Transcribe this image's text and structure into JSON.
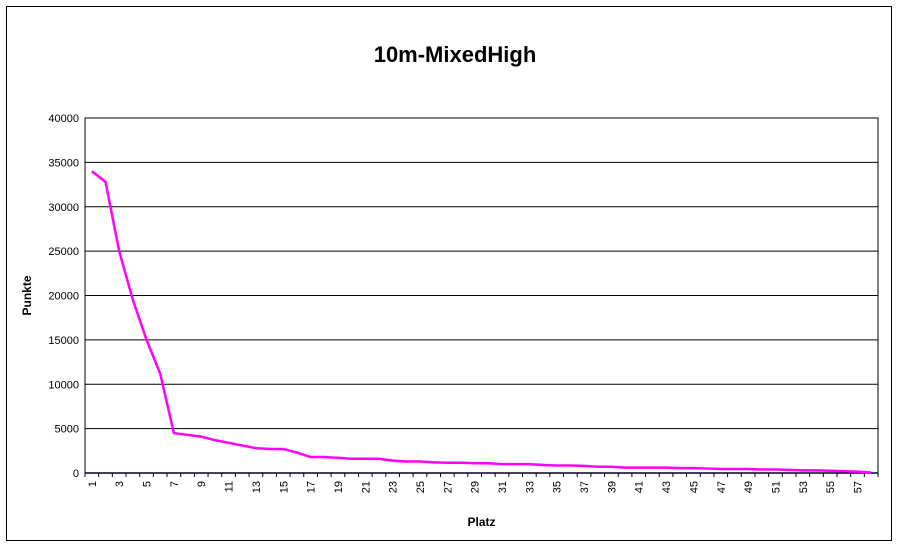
{
  "chart_data": {
    "type": "line",
    "title": "10m-MixedHigh",
    "xlabel": "Platz",
    "ylabel": "Punkte",
    "ylim": [
      0,
      40000
    ],
    "yticks": [
      0,
      5000,
      10000,
      15000,
      20000,
      25000,
      30000,
      35000,
      40000
    ],
    "xlim": [
      1,
      58
    ],
    "xticks": [
      1,
      3,
      5,
      7,
      9,
      11,
      13,
      15,
      17,
      19,
      21,
      23,
      25,
      27,
      29,
      31,
      33,
      35,
      37,
      39,
      41,
      43,
      45,
      47,
      49,
      51,
      53,
      55,
      57
    ],
    "grid": true,
    "legend": "none",
    "series": [
      {
        "color": "#ff00ff",
        "x": [
          1,
          2,
          3,
          4,
          5,
          6,
          7,
          8,
          9,
          10,
          11,
          12,
          13,
          14,
          15,
          16,
          17,
          18,
          19,
          20,
          21,
          22,
          23,
          24,
          25,
          26,
          27,
          28,
          29,
          30,
          31,
          32,
          33,
          34,
          35,
          36,
          37,
          38,
          39,
          40,
          41,
          42,
          43,
          44,
          45,
          46,
          47,
          48,
          49,
          50,
          51,
          52,
          53,
          54,
          55,
          56,
          57,
          58
        ],
        "values": [
          34000,
          32800,
          25000,
          19500,
          15000,
          11200,
          4500,
          4300,
          4100,
          3700,
          3400,
          3100,
          2800,
          2700,
          2700,
          2300,
          1800,
          1800,
          1700,
          1600,
          1600,
          1600,
          1400,
          1300,
          1300,
          1200,
          1150,
          1150,
          1100,
          1100,
          1000,
          1000,
          1000,
          900,
          850,
          850,
          800,
          700,
          700,
          600,
          600,
          600,
          600,
          550,
          550,
          500,
          450,
          450,
          450,
          400,
          400,
          350,
          300,
          300,
          250,
          200,
          150,
          50
        ]
      }
    ]
  }
}
